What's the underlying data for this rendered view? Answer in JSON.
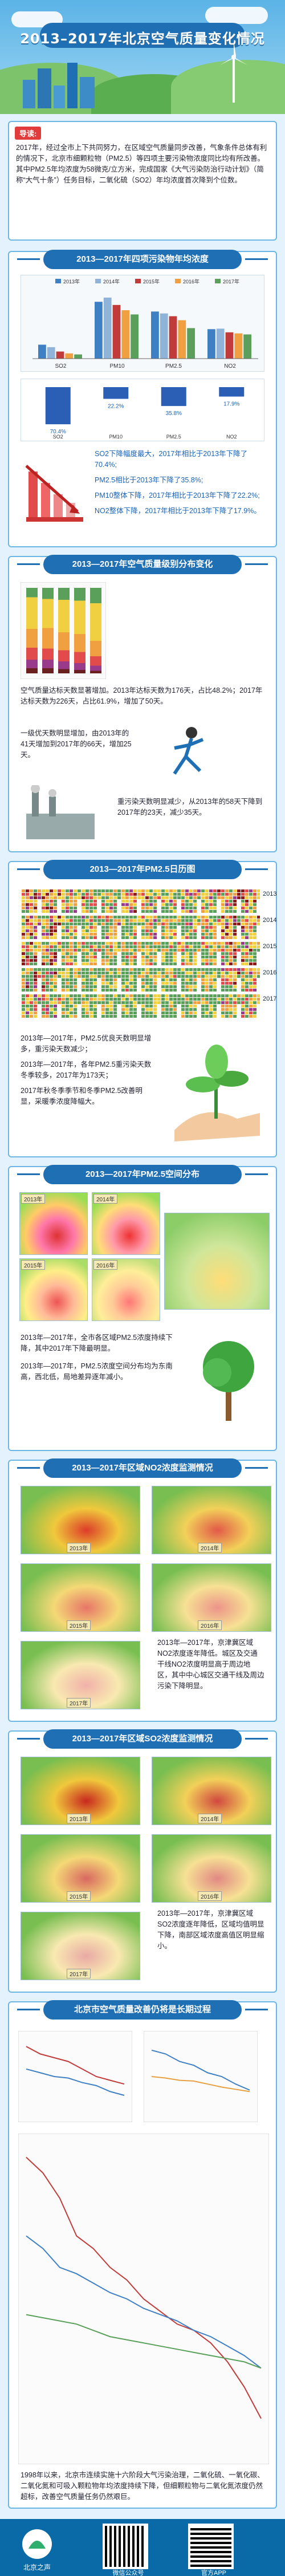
{
  "header": {
    "title": "2013–2017年北京空气质量变化情况"
  },
  "intro": {
    "badge": "导读:",
    "text": "2017年，经过全市上下共同努力，在区域空气质量同步改善，气象条件总体有利的情况下，北京市细颗粒物（PM2.5）等四项主要污染物浓度同比均有所改善。其中PM2.5年均浓度为58微克/立方米，完成国家《大气污染防治行动计划》（简称“大气十条”）任务目标，二氧化硫（SO2）年均浓度首次降到个位数。"
  },
  "section1": {
    "title": "2013—2017年四项污染物年均浓度",
    "legend": [
      "2013年",
      "2014年",
      "2015年",
      "2016年",
      "2017年"
    ],
    "bars_categories": [
      "SO2",
      "PM10",
      "PM2.5",
      "NO2"
    ],
    "bars_values": [
      [
        26.5,
        21.8,
        13.5,
        10,
        8
      ],
      [
        108,
        116,
        102,
        92,
        84
      ],
      [
        89.5,
        85.9,
        80.6,
        73,
        58
      ],
      [
        56,
        57,
        50,
        48,
        46
      ]
    ],
    "pct_labels": [
      "70.4%",
      "22.2%",
      "35.8%",
      "17.9%"
    ],
    "pct_cats": [
      "SO2",
      "PM10",
      "PM2.5",
      "NO2"
    ],
    "note1": "SO2下降幅度最大，2017年相比于2013年下降了70.4%;",
    "note2": "PM2.5相比于2013年下降了35.8%;",
    "note3": "PM10整体下降，2017年相比于2013年下降了22.2%;",
    "note4": "NO2整体下降，2017年相比于2013年下降了17.9%。"
  },
  "section2": {
    "title": "2013—2017年空气质量级别分布变化",
    "text1": "空气质量达标天数显著增加。2013年达标天数为176天，占比48.2%；2017年达标天数为226天，占比61.9%，增加了50天。",
    "text2": "一级优天数明显增加，由2013年的41天增加到2017年的66天，增加25天。",
    "text3": "重污染天数明显减少，从2013年的58天下降到2017年的23天，减少35天。"
  },
  "section3": {
    "title": "2013—2017年PM2.5日历图",
    "years": [
      "2013",
      "2014",
      "2015",
      "2016",
      "2017"
    ],
    "text1": "2013年—2017年，PM2.5优良天数明显增多，重污染天数减少；",
    "text2": "2013年—2017年，各年PM2.5重污染天数冬季较多，2017年为173天；",
    "text3": "2017年秋冬季季节和冬季PM2.5改善明显，采暖季浓度降幅大。"
  },
  "section4": {
    "title": "2013—2017年PM2.5空间分布",
    "years": [
      "2013年",
      "2014年",
      "2015年",
      "2016年"
    ],
    "text1": "2013年—2017年，全市各区域PM2.5浓度持续下降，其中2017年下降最明显。",
    "text2": "2013年—2017年，PM2.5浓度空间分布均为东南高，西北低，局地差异逐年减小。"
  },
  "section5": {
    "title": "2013—2017年区域NO2浓度监测情况",
    "years": [
      "2013年",
      "2014年",
      "2015年",
      "2016年",
      "2017年"
    ],
    "text": "2013年—2017年，京津冀区域NO2浓度逐年降低。城区及交通干线NO2浓度明显高于周边地区，其中中心城区交通干线及周边污染下降明显。"
  },
  "section6": {
    "title": "2013—2017年区域SO2浓度监测情况",
    "years": [
      "2013年",
      "2014年",
      "2015年",
      "2016年",
      "2017年"
    ],
    "text": "2013年—2017年，京津冀区域SO2浓度逐年降低，区域均值明显下降，南部区域浓度高值区明显缩小。"
  },
  "section7": {
    "title": "北京市空气质量改善仍将是长期过程",
    "text": "1998年以来，北京市连续实施十六阶段大气污染治理，二氧化硫、一氧化碳、二氧化氮和可吸入颗粒物年均浓度持续下降，但细颗粒物与二氧化氮浓度仍然超标，改善空气质量任务仍然艰巨。"
  },
  "footer": {
    "logo_text": "北京之声",
    "qr1": "微信公众号",
    "qr2": "官方APP"
  },
  "colors": {
    "brand": "#1f6fb5",
    "accent": "#e23b3b",
    "bg": "#e3f2fc"
  },
  "chart_data": {
    "type": "bar",
    "title": "2013—2017年四项污染物年均浓度",
    "categories": [
      "SO2",
      "PM10",
      "PM2.5",
      "NO2"
    ],
    "series": [
      {
        "name": "2013年",
        "values": [
          26.5,
          108,
          89.5,
          56
        ]
      },
      {
        "name": "2014年",
        "values": [
          21.8,
          116,
          85.9,
          57
        ]
      },
      {
        "name": "2015年",
        "values": [
          13.5,
          102,
          80.6,
          50
        ]
      },
      {
        "name": "2016年",
        "values": [
          10,
          92,
          73,
          48
        ]
      },
      {
        "name": "2017年",
        "values": [
          8,
          84,
          58,
          46
        ]
      }
    ]
  }
}
